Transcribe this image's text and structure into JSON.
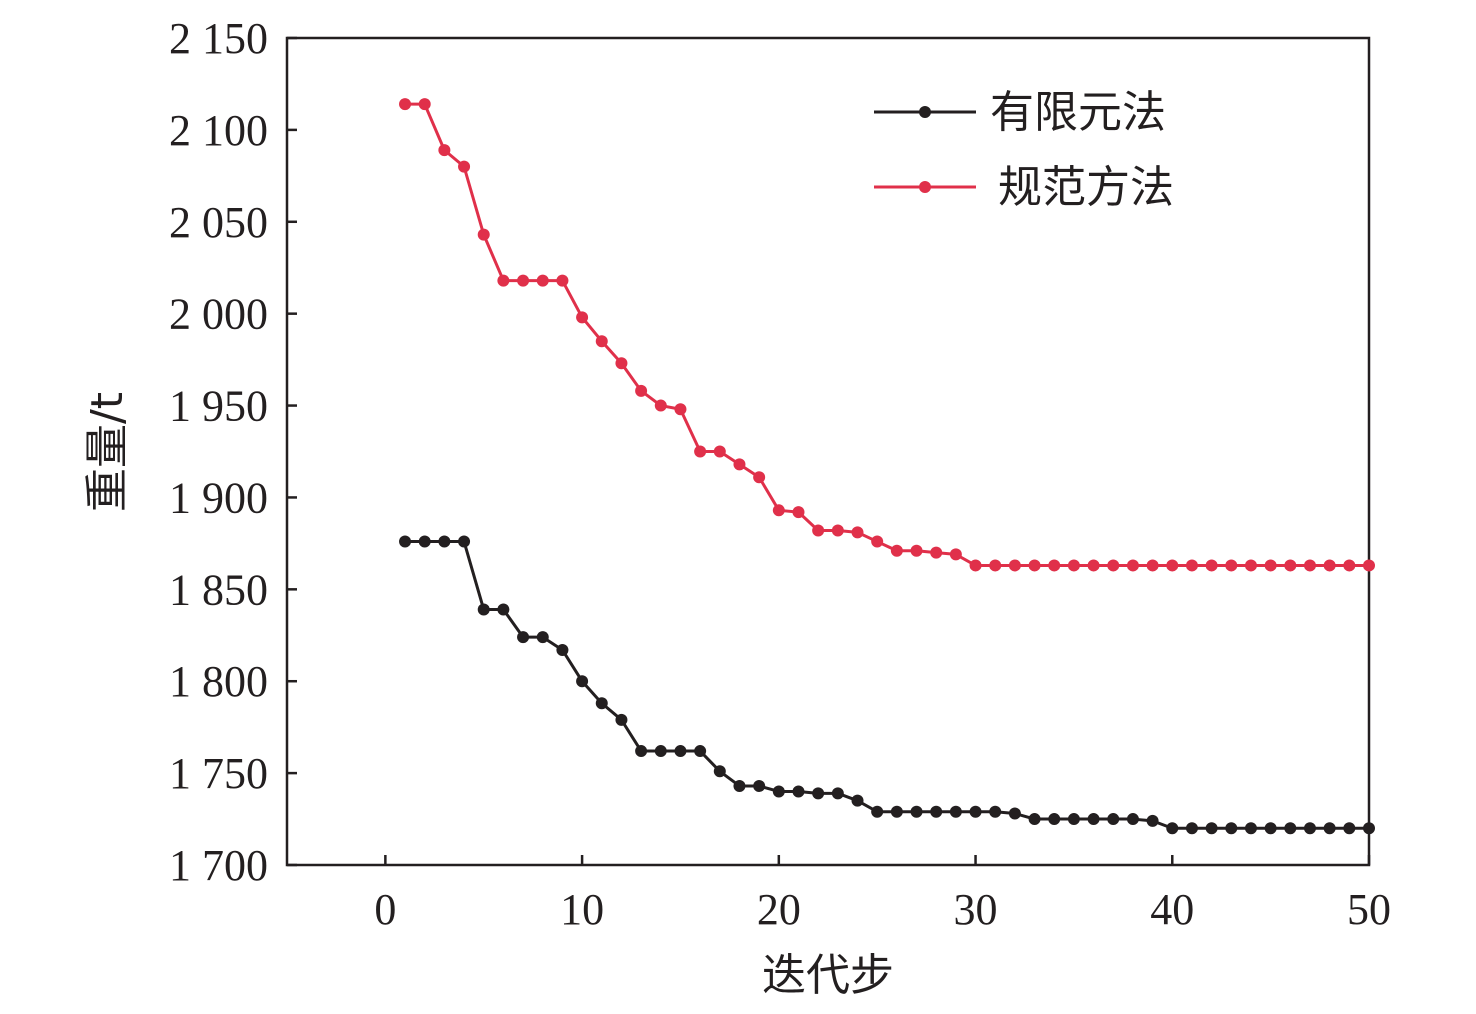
{
  "chart_data": {
    "type": "line",
    "xlabel": "迭代步",
    "ylabel": "重量/t",
    "xlim": [
      -5,
      50
    ],
    "ylim": [
      1700,
      2150
    ],
    "xticks": [
      0,
      10,
      20,
      30,
      40,
      50
    ],
    "xtick_labels": [
      "0",
      "10",
      "20",
      "30",
      "40",
      "50"
    ],
    "yticks": [
      1700,
      1750,
      1800,
      1850,
      1900,
      1950,
      2000,
      2050,
      2100,
      2150
    ],
    "ytick_labels": [
      "1 700",
      "1 750",
      "1 800",
      "1 850",
      "1 900",
      "1 950",
      "2 000",
      "2 050",
      "2 100",
      "2 150"
    ],
    "grid": false,
    "legend_position": "top-right",
    "x": [
      1,
      2,
      3,
      4,
      5,
      6,
      7,
      8,
      9,
      10,
      11,
      12,
      13,
      14,
      15,
      16,
      17,
      18,
      19,
      20,
      21,
      22,
      23,
      24,
      25,
      26,
      27,
      28,
      29,
      30,
      31,
      32,
      33,
      34,
      35,
      36,
      37,
      38,
      39,
      40,
      41,
      42,
      43,
      44,
      45,
      46,
      47,
      48,
      49,
      50
    ],
    "series": [
      {
        "name": "有限元法",
        "color": "#231f20",
        "values": [
          1876,
          1876,
          1876,
          1876,
          1839,
          1839,
          1824,
          1824,
          1817,
          1800,
          1788,
          1779,
          1762,
          1762,
          1762,
          1762,
          1751,
          1743,
          1743,
          1740,
          1740,
          1739,
          1739,
          1735,
          1729,
          1729,
          1729,
          1729,
          1729,
          1729,
          1729,
          1728,
          1725,
          1725,
          1725,
          1725,
          1725,
          1725,
          1724,
          1720,
          1720,
          1720,
          1720,
          1720,
          1720,
          1720,
          1720,
          1720,
          1720,
          1720
        ]
      },
      {
        "name": "规范方法",
        "color": "#e0304a",
        "values": [
          2114,
          2114,
          2089,
          2080,
          2043,
          2018,
          2018,
          2018,
          2018,
          1998,
          1985,
          1973,
          1958,
          1950,
          1948,
          1925,
          1925,
          1918,
          1911,
          1893,
          1892,
          1882,
          1882,
          1881,
          1876,
          1871,
          1871,
          1870,
          1869,
          1863,
          1863,
          1863,
          1863,
          1863,
          1863,
          1863,
          1863,
          1863,
          1863,
          1863,
          1863,
          1863,
          1863,
          1863,
          1863,
          1863,
          1863,
          1863,
          1863,
          1863
        ]
      }
    ]
  }
}
